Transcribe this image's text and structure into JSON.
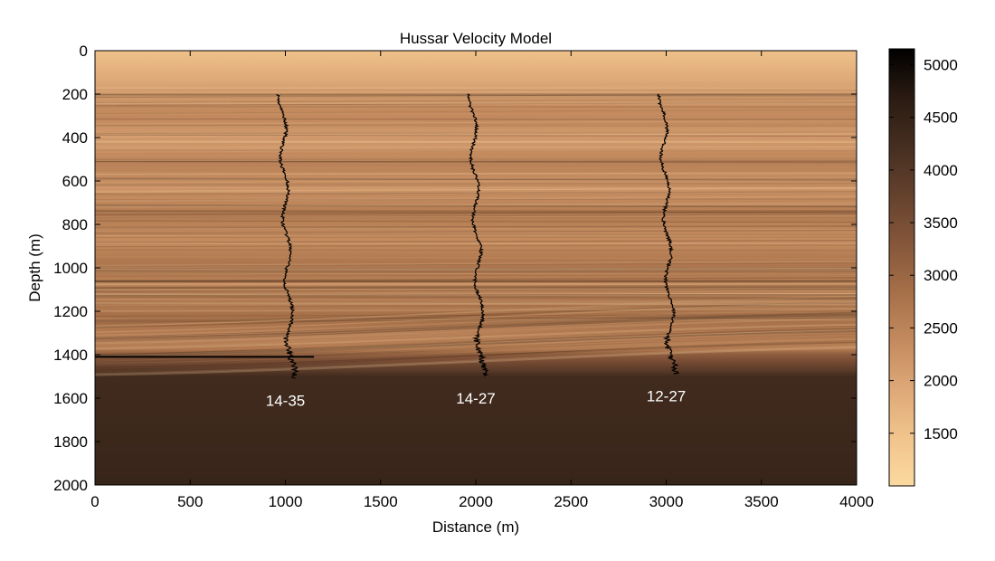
{
  "chart_data": {
    "type": "heatmap",
    "title": "Hussar Velocity Model",
    "xlabel": "Distance (m)",
    "ylabel": "Depth (m)",
    "xlim": [
      0,
      4000
    ],
    "ylim": [
      0,
      2000
    ],
    "y_reversed": true,
    "x_ticks": [
      0,
      500,
      1000,
      1500,
      2000,
      2500,
      3000,
      3500,
      4000
    ],
    "y_ticks": [
      0,
      200,
      400,
      600,
      800,
      1000,
      1200,
      1400,
      1600,
      1800,
      2000
    ],
    "colorbar": {
      "ticks": [
        1500,
        2000,
        2500,
        3000,
        3500,
        4000,
        4500,
        5000
      ],
      "range": [
        1000,
        5150
      ],
      "colors": [
        "#fbd9a0",
        "#f1c48c",
        "#dda877",
        "#c38a5e",
        "#a56f48",
        "#85563a",
        "#64412d",
        "#452e20",
        "#2a1b12",
        "#000000"
      ]
    },
    "wells": [
      {
        "name": "14-35",
        "x": 1000,
        "depth_top": 200,
        "depth_bottom": 1510
      },
      {
        "name": "14-27",
        "x": 2000,
        "depth_top": 200,
        "depth_bottom": 1500
      },
      {
        "name": "12-27",
        "x": 3000,
        "depth_top": 200,
        "depth_bottom": 1490
      }
    ]
  }
}
